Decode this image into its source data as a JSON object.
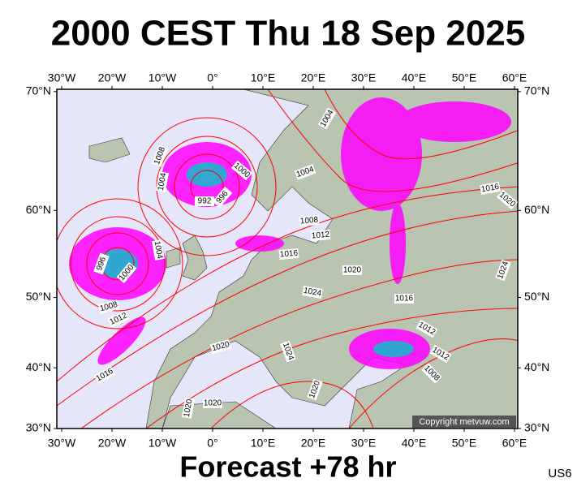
{
  "header": {
    "title": "2000 CEST Thu 18 Sep 2025"
  },
  "footer": {
    "subtitle": "Forecast +78 hr",
    "code": "US6"
  },
  "map": {
    "lon_ticks": [
      {
        "value": -30,
        "label": "30°W"
      },
      {
        "value": -20,
        "label": "20°W"
      },
      {
        "value": -10,
        "label": "10°W"
      },
      {
        "value": 0,
        "label": "0°"
      },
      {
        "value": 10,
        "label": "10°E"
      },
      {
        "value": 20,
        "label": "20°E"
      },
      {
        "value": 30,
        "label": "30°E"
      },
      {
        "value": 40,
        "label": "40°E"
      },
      {
        "value": 50,
        "label": "50°E"
      },
      {
        "value": 60,
        "label": "60°E"
      }
    ],
    "lat_ticks": [
      {
        "value": 70,
        "label": "70°N"
      },
      {
        "value": 60,
        "label": "60°N"
      },
      {
        "value": 50,
        "label": "50°N"
      },
      {
        "value": 40,
        "label": "40°N"
      },
      {
        "value": 30,
        "label": "30°N"
      }
    ],
    "isobar_labels": [
      "1004",
      "1008",
      "1000",
      "1004",
      "1004",
      "992",
      "996",
      "1016",
      "1020",
      "1008",
      "1012",
      "1016",
      "996",
      "1004",
      "1000",
      "1020",
      "1024",
      "1024",
      "1016",
      "1008",
      "1012",
      "1012",
      "1020",
      "1024",
      "1012",
      "1008",
      "1016",
      "1020",
      "1020",
      "1020"
    ],
    "credit": "Copyright metvuw.com"
  }
}
